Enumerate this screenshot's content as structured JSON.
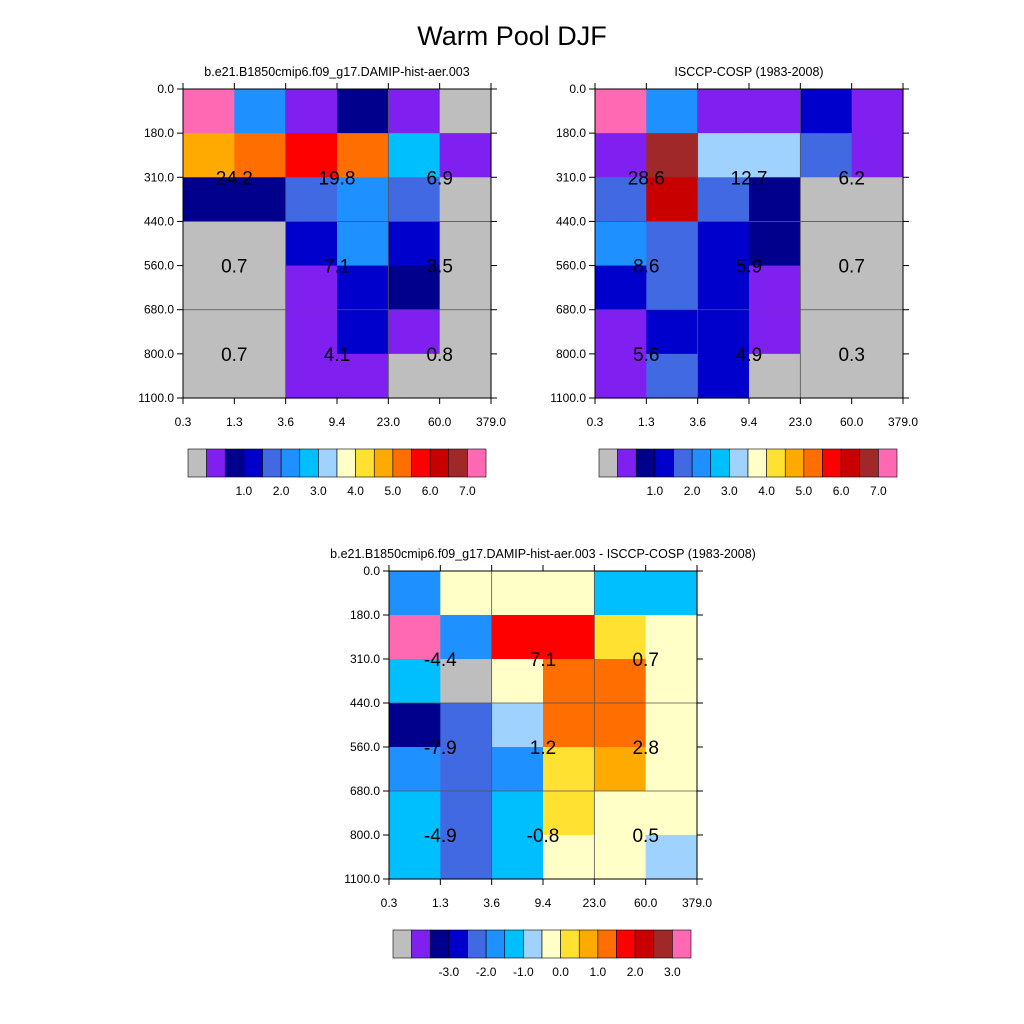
{
  "title": "Warm Pool DJF",
  "chart_data": [
    {
      "type": "heatmap",
      "title": "b.e21.B1850cmip6.f09_g17.DAMIP-hist-aer.003",
      "x_ticks": [
        "0.3",
        "1.3",
        "3.6",
        "9.4",
        "23.0",
        "60.0",
        "379.0"
      ],
      "y_ticks": [
        "0.0",
        "180.0",
        "310.0",
        "440.0",
        "560.0",
        "680.0",
        "800.0",
        "1100.0"
      ],
      "palette": [
        "#bebebe",
        "#8020f0",
        "#00008c",
        "#0000cd",
        "#4169e1",
        "#1e90ff",
        "#00bfff",
        "#a0d2ff",
        "#ffffc8",
        "#ffe132",
        "#ffaa00",
        "#ff6e00",
        "#ff0000",
        "#c80000",
        "#a02828",
        "#ff69b4"
      ],
      "colorbar_labels": [
        "1.0",
        "2.0",
        "3.0",
        "4.0",
        "5.0",
        "6.0",
        "7.0"
      ],
      "cells": [
        [
          "#ff69b4",
          "#1e90ff",
          "#8020f0",
          "#00008c",
          "#8020f0",
          "#bebebe"
        ],
        [
          "#ffaa00",
          "#ff6e00",
          "#ff0000",
          "#ff6e00",
          "#00bfff",
          "#8020f0"
        ],
        [
          "#00008c",
          "#00008c",
          "#4169e1",
          "#1e90ff",
          "#4169e1",
          "#bebebe"
        ],
        [
          "#bebebe",
          "#bebebe",
          "#0000cd",
          "#1e90ff",
          "#0000cd",
          "#bebebe"
        ],
        [
          "#bebebe",
          "#bebebe",
          "#8020f0",
          "#0000cd",
          "#00008c",
          "#bebebe"
        ],
        [
          "#bebebe",
          "#bebebe",
          "#8020f0",
          "#0000cd",
          "#8020f0",
          "#bebebe"
        ],
        [
          "#bebebe",
          "#bebebe",
          "#8020f0",
          "#8020f0",
          "#bebebe",
          "#bebebe"
        ]
      ],
      "region_values": [
        [
          "",
          "",
          ""
        ],
        [
          "24.2",
          "19.8",
          "6.9"
        ],
        [
          "0.7",
          "7.1",
          "3.5"
        ],
        [
          "0.7",
          "4.1",
          "0.8"
        ]
      ]
    },
    {
      "type": "heatmap",
      "title": "ISCCP-COSP (1983-2008)",
      "x_ticks": [
        "0.3",
        "1.3",
        "3.6",
        "9.4",
        "23.0",
        "60.0",
        "379.0"
      ],
      "y_ticks": [
        "0.0",
        "180.0",
        "310.0",
        "440.0",
        "560.0",
        "680.0",
        "800.0",
        "1100.0"
      ],
      "palette": [
        "#bebebe",
        "#8020f0",
        "#00008c",
        "#0000cd",
        "#4169e1",
        "#1e90ff",
        "#00bfff",
        "#a0d2ff",
        "#ffffc8",
        "#ffe132",
        "#ffaa00",
        "#ff6e00",
        "#ff0000",
        "#c80000",
        "#a02828",
        "#ff69b4"
      ],
      "colorbar_labels": [
        "1.0",
        "2.0",
        "3.0",
        "4.0",
        "5.0",
        "6.0",
        "7.0"
      ],
      "cells": [
        [
          "#ff69b4",
          "#1e90ff",
          "#8020f0",
          "#8020f0",
          "#0000cd",
          "#8020f0"
        ],
        [
          "#8020f0",
          "#a02828",
          "#a0d2ff",
          "#a0d2ff",
          "#4169e1",
          "#8020f0"
        ],
        [
          "#4169e1",
          "#c80000",
          "#4169e1",
          "#00008c",
          "#bebebe",
          "#bebebe"
        ],
        [
          "#1e90ff",
          "#4169e1",
          "#0000cd",
          "#00008c",
          "#bebebe",
          "#bebebe"
        ],
        [
          "#0000cd",
          "#4169e1",
          "#0000cd",
          "#8020f0",
          "#bebebe",
          "#bebebe"
        ],
        [
          "#8020f0",
          "#0000cd",
          "#0000cd",
          "#8020f0",
          "#bebebe",
          "#bebebe"
        ],
        [
          "#8020f0",
          "#4169e1",
          "#0000cd",
          "#bebebe",
          "#bebebe",
          "#bebebe"
        ]
      ],
      "region_values": [
        [
          "",
          "",
          ""
        ],
        [
          "28.6",
          "12.7",
          "6.2"
        ],
        [
          "8.6",
          "5.9",
          "0.7"
        ],
        [
          "5.6",
          "4.9",
          "0.3"
        ]
      ]
    },
    {
      "type": "heatmap",
      "title": "b.e21.B1850cmip6.f09_g17.DAMIP-hist-aer.003 - ISCCP-COSP (1983-2008)",
      "x_ticks": [
        "0.3",
        "1.3",
        "3.6",
        "9.4",
        "23.0",
        "60.0",
        "379.0"
      ],
      "y_ticks": [
        "0.0",
        "180.0",
        "310.0",
        "440.0",
        "560.0",
        "680.0",
        "800.0",
        "1100.0"
      ],
      "palette": [
        "#bebebe",
        "#8020f0",
        "#00008c",
        "#0000cd",
        "#4169e1",
        "#1e90ff",
        "#00bfff",
        "#a0d2ff",
        "#ffffc8",
        "#ffe132",
        "#ffaa00",
        "#ff6e00",
        "#ff0000",
        "#c80000",
        "#a02828",
        "#ff69b4"
      ],
      "colorbar_labels": [
        "-3.0",
        "-2.0",
        "-1.0",
        "0.0",
        "1.0",
        "2.0",
        "3.0"
      ],
      "cells": [
        [
          "#1e90ff",
          "#ffffc8",
          "#ffffc8",
          "#ffffc8",
          "#00bfff",
          "#00bfff"
        ],
        [
          "#ff69b4",
          "#1e90ff",
          "#ff0000",
          "#ff0000",
          "#ffe132",
          "#ffffc8"
        ],
        [
          "#00bfff",
          "#bebebe",
          "#ffffc8",
          "#ff6e00",
          "#ff6e00",
          "#ffffc8"
        ],
        [
          "#00008c",
          "#4169e1",
          "#a0d2ff",
          "#ff6e00",
          "#ff6e00",
          "#ffffc8"
        ],
        [
          "#1e90ff",
          "#4169e1",
          "#1e90ff",
          "#ffe132",
          "#ffaa00",
          "#ffffc8"
        ],
        [
          "#00bfff",
          "#4169e1",
          "#00bfff",
          "#ffe132",
          "#ffffc8",
          "#ffffc8"
        ],
        [
          "#00bfff",
          "#4169e1",
          "#00bfff",
          "#ffffc8",
          "#ffffc8",
          "#a0d2ff"
        ]
      ],
      "region_values": [
        [
          "",
          "",
          ""
        ],
        [
          "-4.4",
          "7.1",
          "0.7"
        ],
        [
          "-7.9",
          "1.2",
          "2.8"
        ],
        [
          "-4.9",
          "-0.8",
          "0.5"
        ]
      ]
    }
  ]
}
